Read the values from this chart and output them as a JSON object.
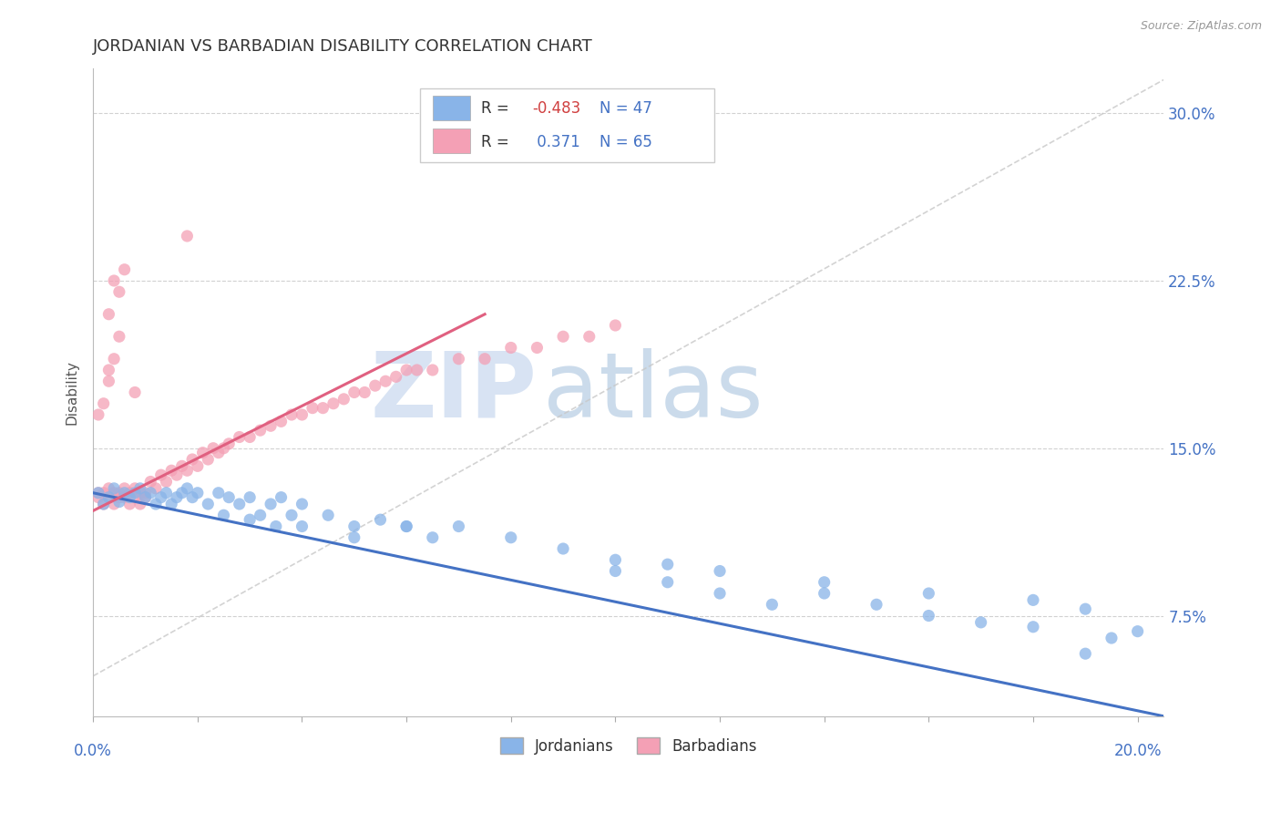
{
  "title": "JORDANIAN VS BARBADIAN DISABILITY CORRELATION CHART",
  "source_text": "Source: ZipAtlas.com",
  "ylabel": "Disability",
  "xlim": [
    0.0,
    0.205
  ],
  "ylim": [
    0.03,
    0.32
  ],
  "ytick_labels": [
    "7.5%",
    "15.0%",
    "22.5%",
    "30.0%"
  ],
  "yticks": [
    0.075,
    0.15,
    0.225,
    0.3
  ],
  "blue_color": "#89b4e8",
  "pink_color": "#f4a0b5",
  "blue_line_color": "#4472c4",
  "pink_line_color": "#e06080",
  "diagonal_color": "#c8c8c8",
  "R_blue": -0.483,
  "N_blue": 47,
  "R_pink": 0.371,
  "N_pink": 65,
  "blue_scatter_x": [
    0.001,
    0.002,
    0.003,
    0.004,
    0.005,
    0.006,
    0.007,
    0.008,
    0.009,
    0.01,
    0.011,
    0.012,
    0.013,
    0.014,
    0.015,
    0.016,
    0.017,
    0.018,
    0.019,
    0.02,
    0.022,
    0.024,
    0.026,
    0.028,
    0.03,
    0.032,
    0.034,
    0.036,
    0.038,
    0.04,
    0.045,
    0.05,
    0.055,
    0.06,
    0.065,
    0.07,
    0.08,
    0.09,
    0.1,
    0.11,
    0.12,
    0.14,
    0.16,
    0.18,
    0.19,
    0.195,
    0.2
  ],
  "blue_scatter_y": [
    0.13,
    0.125,
    0.128,
    0.132,
    0.126,
    0.13,
    0.128,
    0.13,
    0.132,
    0.128,
    0.13,
    0.125,
    0.128,
    0.13,
    0.125,
    0.128,
    0.13,
    0.132,
    0.128,
    0.13,
    0.125,
    0.13,
    0.128,
    0.125,
    0.128,
    0.12,
    0.125,
    0.128,
    0.12,
    0.125,
    0.12,
    0.115,
    0.118,
    0.115,
    0.11,
    0.115,
    0.11,
    0.105,
    0.1,
    0.098,
    0.095,
    0.09,
    0.085,
    0.082,
    0.078,
    0.065,
    0.068
  ],
  "blue_scatter_x2": [
    0.025,
    0.03,
    0.035,
    0.04,
    0.05,
    0.06,
    0.1,
    0.11,
    0.12,
    0.13,
    0.14,
    0.15,
    0.16,
    0.17,
    0.18,
    0.19
  ],
  "blue_scatter_y2": [
    0.12,
    0.118,
    0.115,
    0.115,
    0.11,
    0.115,
    0.095,
    0.09,
    0.085,
    0.08,
    0.085,
    0.08,
    0.075,
    0.072,
    0.07,
    0.058
  ],
  "pink_scatter_x": [
    0.001,
    0.001,
    0.002,
    0.002,
    0.003,
    0.003,
    0.004,
    0.004,
    0.005,
    0.005,
    0.006,
    0.006,
    0.007,
    0.007,
    0.008,
    0.008,
    0.009,
    0.009,
    0.01,
    0.01,
    0.011,
    0.012,
    0.013,
    0.014,
    0.015,
    0.016,
    0.017,
    0.018,
    0.019,
    0.02,
    0.021,
    0.022,
    0.023,
    0.024,
    0.025,
    0.026,
    0.028,
    0.03,
    0.032,
    0.034,
    0.036,
    0.038,
    0.04,
    0.042,
    0.044,
    0.046,
    0.048,
    0.05,
    0.052,
    0.054,
    0.056,
    0.058,
    0.06,
    0.062,
    0.065,
    0.07,
    0.075,
    0.08,
    0.085,
    0.09,
    0.095,
    0.1,
    0.005,
    0.006,
    0.008
  ],
  "pink_scatter_y": [
    0.13,
    0.128,
    0.125,
    0.13,
    0.128,
    0.132,
    0.125,
    0.13,
    0.128,
    0.13,
    0.128,
    0.132,
    0.125,
    0.13,
    0.128,
    0.132,
    0.13,
    0.125,
    0.128,
    0.13,
    0.135,
    0.132,
    0.138,
    0.135,
    0.14,
    0.138,
    0.142,
    0.14,
    0.145,
    0.142,
    0.148,
    0.145,
    0.15,
    0.148,
    0.15,
    0.152,
    0.155,
    0.155,
    0.158,
    0.16,
    0.162,
    0.165,
    0.165,
    0.168,
    0.168,
    0.17,
    0.172,
    0.175,
    0.175,
    0.178,
    0.18,
    0.182,
    0.185,
    0.185,
    0.185,
    0.19,
    0.19,
    0.195,
    0.195,
    0.2,
    0.2,
    0.205,
    0.22,
    0.23,
    0.175
  ],
  "pink_outlier_x": [
    0.003,
    0.018,
    0.001,
    0.002,
    0.003,
    0.004,
    0.005,
    0.003,
    0.004
  ],
  "pink_outlier_y": [
    0.185,
    0.245,
    0.165,
    0.17,
    0.18,
    0.19,
    0.2,
    0.21,
    0.225
  ],
  "blue_line_x0": 0.0,
  "blue_line_x1": 0.205,
  "blue_line_y0": 0.13,
  "blue_line_y1": 0.03,
  "pink_line_x0": 0.0,
  "pink_line_x1": 0.075,
  "pink_line_y0": 0.122,
  "pink_line_y1": 0.21
}
